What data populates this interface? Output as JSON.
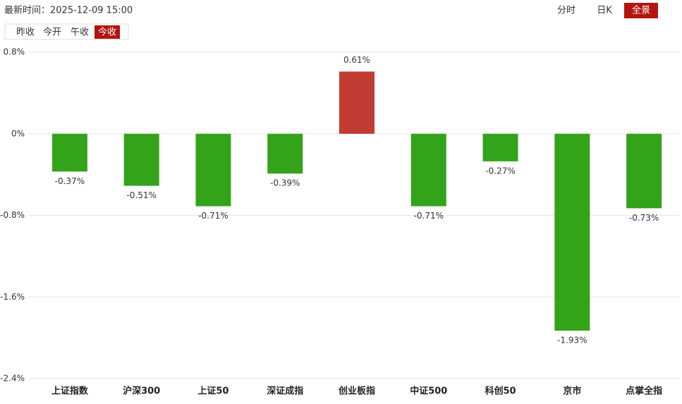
{
  "header": {
    "time_label": "最新时间：2025-12-09 15:00",
    "view_tabs": [
      "分时",
      "日K",
      "全景"
    ],
    "active_view": 2,
    "price_tabs": [
      "昨收",
      "今开",
      "午收",
      "今收"
    ],
    "active_price": 3
  },
  "chart_data": {
    "type": "bar",
    "categories": [
      "上证指数",
      "沪深300",
      "上证50",
      "深证成指",
      "创业板指",
      "中证500",
      "科创50",
      "京市",
      "点掌全指"
    ],
    "values": [
      -0.37,
      -0.51,
      -0.71,
      -0.39,
      0.61,
      -0.71,
      -0.27,
      -1.93,
      -0.73
    ],
    "value_labels": [
      "-0.37%",
      "-0.51%",
      "-0.71%",
      "-0.39%",
      "0.61%",
      "-0.71%",
      "-0.27%",
      "-1.93%",
      "-0.73%"
    ],
    "positive_color": "#c23b32",
    "negative_color": "#33a31a",
    "ylim": [
      -2.4,
      0.8
    ],
    "yticks": [
      {
        "value": 0.8,
        "label": "0.8%"
      },
      {
        "value": 0,
        "label": "0%"
      },
      {
        "value": -0.8,
        "label": "-0.8%"
      },
      {
        "value": -1.6,
        "label": "-1.6%"
      },
      {
        "value": -2.4,
        "label": "-2.4%"
      }
    ],
    "grid": true
  }
}
